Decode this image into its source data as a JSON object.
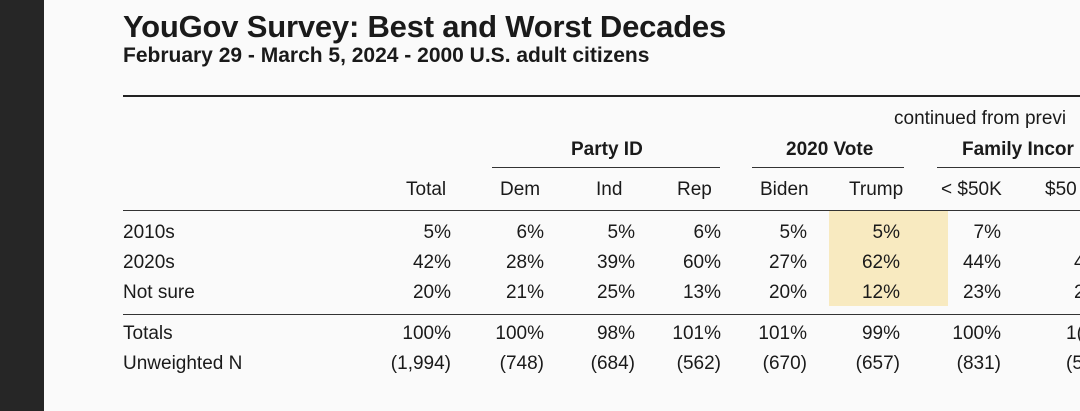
{
  "title": "YouGov Survey: Best and Worst Decades",
  "subtitle": "February 29 - March 5, 2024 - 2000 U.S. adult citizens",
  "continued": "continued from previ",
  "groups": [
    "Party ID",
    "2020 Vote",
    "Family Incor"
  ],
  "columns": [
    "Total",
    "Dem",
    "Ind",
    "Rep",
    "Biden",
    "Trump",
    "< $50K",
    "$50"
  ],
  "rows": [
    {
      "label": "2010s",
      "values": [
        "5%",
        "6%",
        "5%",
        "6%",
        "5%",
        "5%",
        "7%",
        ""
      ]
    },
    {
      "label": "2020s",
      "values": [
        "42%",
        "28%",
        "39%",
        "60%",
        "27%",
        "62%",
        "44%",
        "4"
      ]
    },
    {
      "label": "Not sure",
      "values": [
        "20%",
        "21%",
        "25%",
        "13%",
        "20%",
        "12%",
        "23%",
        "2"
      ]
    }
  ],
  "totals": [
    {
      "label": "Totals",
      "values": [
        "100%",
        "100%",
        "98%",
        "101%",
        "101%",
        "99%",
        "100%",
        "1("
      ]
    },
    {
      "label": "Unweighted N",
      "values": [
        "(1,994)",
        "(748)",
        "(684)",
        "(562)",
        "(670)",
        "(657)",
        "(831)",
        "(5"
      ]
    }
  ],
  "colors": {
    "highlight": "#f8eac0"
  }
}
